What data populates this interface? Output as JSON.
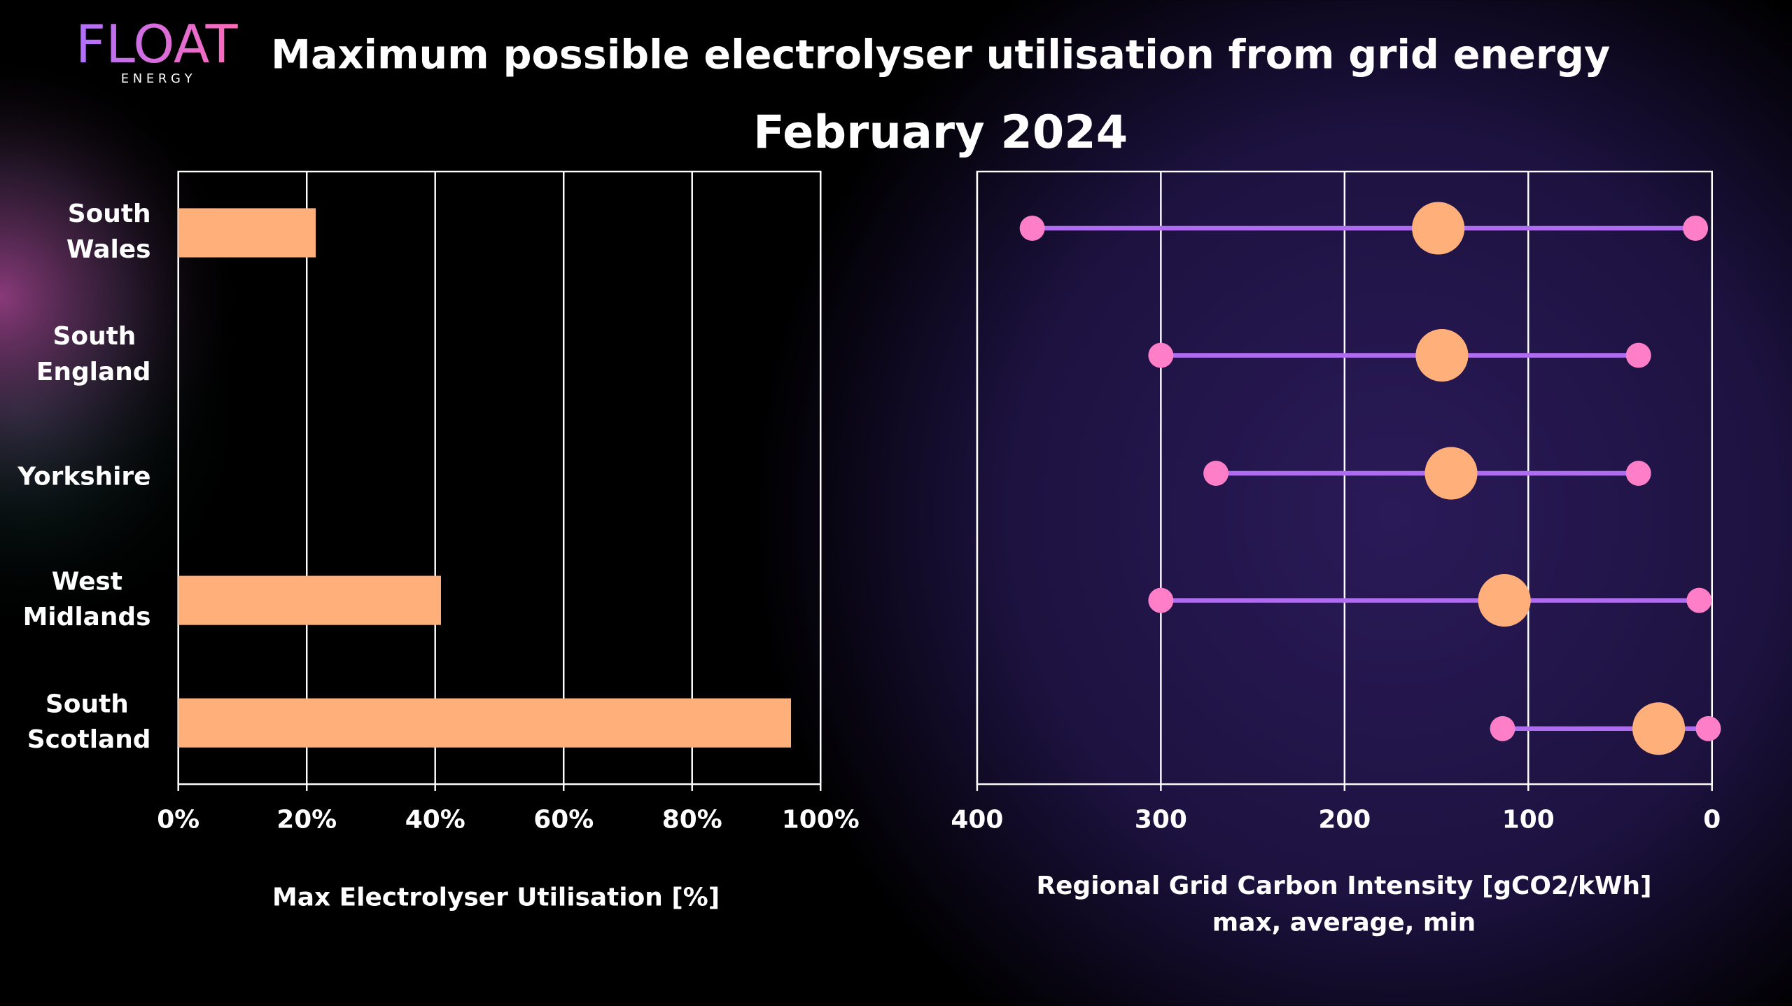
{
  "header": {
    "logo": "FLOAT",
    "logo_sub": "E N E R G Y",
    "title": "Maximum possible electrolyser utilisation from grid energy",
    "subtitle": "February 2024"
  },
  "chart_data": [
    {
      "type": "barh",
      "categories": [
        "South Wales",
        "South England",
        "Yorkshire",
        "West Midlands",
        "South Scotland"
      ],
      "values": [
        21.4,
        0,
        0,
        40.9,
        95.4
      ],
      "color": "#ffb07a",
      "xlim": [
        0,
        100
      ],
      "xticks": [
        {
          "value": 0,
          "label": "0%"
        },
        {
          "value": 20,
          "label": "20%"
        },
        {
          "value": 40,
          "label": "40%"
        },
        {
          "value": 60,
          "label": "60%"
        },
        {
          "value": 80,
          "label": "80%"
        },
        {
          "value": 100,
          "label": "100%"
        }
      ],
      "grid": true,
      "xlabel": "Max Electrolyser Utilisation [%]"
    },
    {
      "type": "dumbbell",
      "max": [
        370,
        300,
        270,
        300,
        114
      ],
      "average": [
        149,
        147,
        142,
        113,
        29
      ],
      "min": [
        9,
        40,
        40,
        7,
        2
      ],
      "max_color": "#ff7ec8",
      "min_color": "#ff7ec8",
      "average_color": "#ffb07a",
      "line_color": "#b06cf0",
      "xlim": [
        400,
        0
      ],
      "xticks": [
        400,
        300,
        200,
        100,
        0
      ],
      "grid": true,
      "xlabel": "Regional Grid Carbon Intensity [gCO2/kWh]",
      "subtitle": "max, average, min"
    }
  ]
}
